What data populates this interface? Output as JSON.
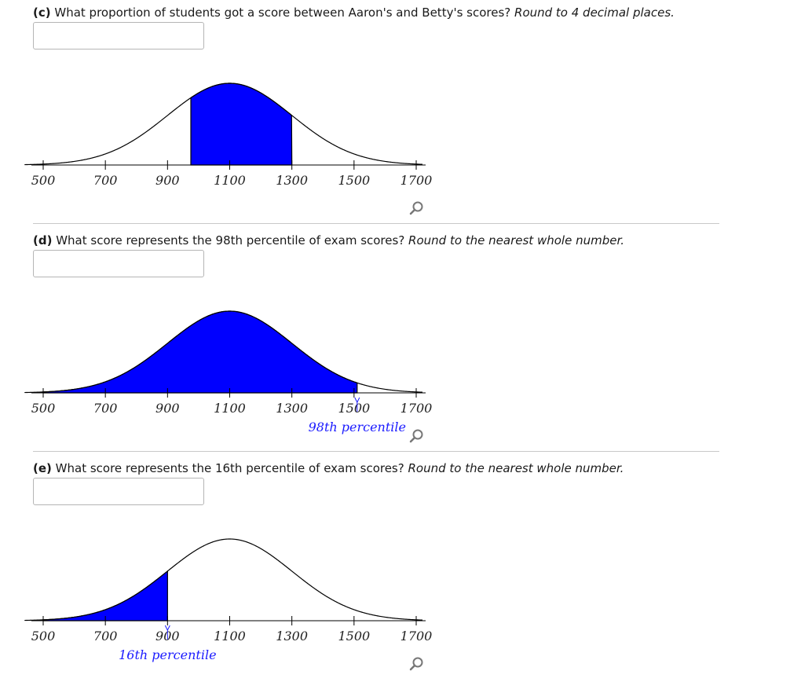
{
  "colors": {
    "fill": "#0000ff",
    "curve": "#000000",
    "label_blue": "#1a1aff",
    "divider": "#c8c8c8"
  },
  "distribution": {
    "mean": 1100,
    "sd": 200,
    "x_min": 500,
    "x_max": 1700
  },
  "questions": [
    {
      "part": "(c)",
      "text": " What proportion of students got a score between Aaron's and Betty's scores? ",
      "instruction": "Round to 4 decimal places.",
      "answer_value": "",
      "placeholder": "",
      "chart_data": {
        "type": "area",
        "ticks": [
          "500",
          "700",
          "900",
          "1100",
          "1300",
          "1500",
          "1700"
        ],
        "tick_values": [
          500,
          700,
          900,
          1100,
          1300,
          1500,
          1700
        ],
        "shade": [
          975,
          1300
        ],
        "annotation": ""
      }
    },
    {
      "part": "(d)",
      "text": " What score represents the 98th percentile of exam scores? ",
      "instruction": "Round to the nearest whole number.",
      "answer_value": "",
      "placeholder": "",
      "chart_data": {
        "type": "area",
        "ticks": [
          "500",
          "700",
          "900",
          "1100",
          "1300",
          "1500",
          "1700"
        ],
        "tick_values": [
          500,
          700,
          900,
          1100,
          1300,
          1500,
          1700
        ],
        "shade": [
          500,
          1510
        ],
        "annotation": "98th percentile",
        "annotation_at": 1510
      }
    },
    {
      "part": "(e)",
      "text": " What score represents the 16th percentile of exam scores? ",
      "instruction": "Round to the nearest whole number.",
      "answer_value": "",
      "placeholder": "",
      "chart_data": {
        "type": "area",
        "ticks": [
          "500",
          "700",
          "900",
          "1100",
          "1300",
          "1500",
          "1700"
        ],
        "tick_values": [
          500,
          700,
          900,
          1100,
          1300,
          1500,
          1700
        ],
        "shade": [
          500,
          900
        ],
        "annotation": "16th percentile",
        "annotation_at": 900
      }
    }
  ],
  "icons": {
    "zoom": "magnifier-icon"
  }
}
